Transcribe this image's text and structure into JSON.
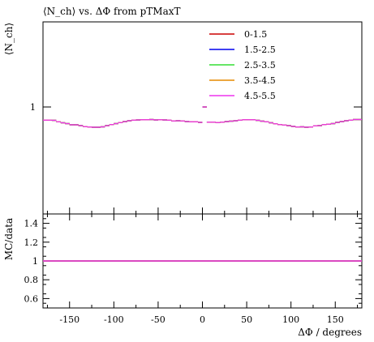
{
  "chart_data": {
    "type": "line",
    "title": "⟨N_ch⟩ vs. ΔΦ from pTMaxT",
    "ylabel": "⟨N_ch⟩",
    "xlabel": "ΔΦ / degrees",
    "ratio_ylabel": "MC/data",
    "xlim": [
      -180,
      180
    ],
    "x_ticks": [
      -150,
      -100,
      -50,
      0,
      50,
      100,
      150
    ],
    "y_tick_main": 1,
    "ratio_ylim": [
      0.5,
      1.5
    ],
    "ratio_ticks": [
      "0.6",
      "0.8",
      "1",
      "1.2",
      "1.4"
    ],
    "legend_position": "top-right",
    "series": [
      {
        "name": "0-1.5",
        "color": "#cc0000"
      },
      {
        "name": "1.5-2.5",
        "color": "#0000ee"
      },
      {
        "name": "2.5-3.5",
        "color": "#33dd33"
      },
      {
        "name": "3.5-4.5",
        "color": "#e68a00"
      },
      {
        "name": "4.5-5.5",
        "color": "#ee33ee"
      }
    ],
    "profile": {
      "x": [
        -177.5,
        -172.5,
        -167.5,
        -162.5,
        -157.5,
        -152.5,
        -147.5,
        -142.5,
        -137.5,
        -132.5,
        -127.5,
        -122.5,
        -117.5,
        -112.5,
        -107.5,
        -102.5,
        -97.5,
        -92.5,
        -87.5,
        -82.5,
        -77.5,
        -72.5,
        -67.5,
        -62.5,
        -57.5,
        -52.5,
        -47.5,
        -42.5,
        -37.5,
        -32.5,
        -27.5,
        -22.5,
        -17.5,
        -12.5,
        -7.5,
        -2.5,
        2.5,
        7.5,
        12.5,
        17.5,
        22.5,
        27.5,
        32.5,
        37.5,
        42.5,
        47.5,
        52.5,
        57.5,
        62.5,
        67.5,
        72.5,
        77.5,
        82.5,
        87.5,
        92.5,
        97.5,
        102.5,
        107.5,
        112.5,
        117.5,
        122.5,
        127.5,
        132.5,
        137.5,
        142.5,
        147.5,
        152.5,
        157.5,
        162.5,
        167.5,
        172.5,
        177.5
      ],
      "y": [
        0.935,
        0.935,
        0.934,
        0.927,
        0.922,
        0.918,
        0.912,
        0.912,
        0.908,
        0.903,
        0.901,
        0.9,
        0.9,
        0.902,
        0.908,
        0.913,
        0.918,
        0.923,
        0.928,
        0.932,
        0.935,
        0.936,
        0.937,
        0.937,
        0.938,
        0.936,
        0.937,
        0.936,
        0.935,
        0.931,
        0.932,
        0.931,
        0.928,
        0.927,
        0.927,
        0.924,
        1.0,
        0.925,
        0.925,
        0.923,
        0.925,
        0.928,
        0.93,
        0.932,
        0.935,
        0.937,
        0.937,
        0.937,
        0.934,
        0.93,
        0.927,
        0.922,
        0.917,
        0.913,
        0.911,
        0.908,
        0.904,
        0.901,
        0.902,
        0.9,
        0.901,
        0.907,
        0.908,
        0.913,
        0.915,
        0.918,
        0.924,
        0.928,
        0.932,
        0.935,
        0.938,
        0.938
      ]
    },
    "ratio_value": 1.0
  }
}
